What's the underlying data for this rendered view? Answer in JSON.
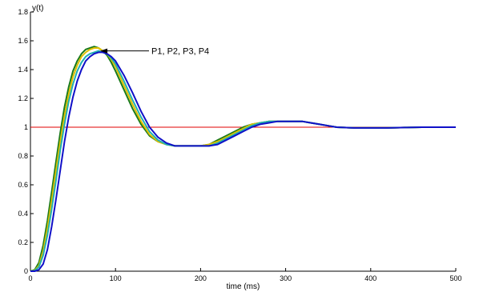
{
  "chart_data": {
    "type": "line",
    "xlabel": "time (ms)",
    "ylabel": "y(t)",
    "xlim": [
      0,
      500
    ],
    "ylim": [
      0,
      1.8
    ],
    "xticks": [
      "0",
      "100",
      "200",
      "300",
      "400",
      "500"
    ],
    "yticks": [
      "0",
      "0.2",
      "0.4",
      "0.6",
      "0.8",
      "1",
      "1.2",
      "1.4",
      "1.6",
      "1.8"
    ],
    "grid": false,
    "reference_line": {
      "y": 1,
      "color": "#e00000"
    },
    "annotation": {
      "text": "P1, P2, P3, P4",
      "x": 82,
      "y": 1.53
    },
    "series": [
      {
        "color": "#1a7a1a",
        "x": [
          0,
          5,
          10,
          15,
          20,
          25,
          30,
          35,
          40,
          45,
          50,
          55,
          60,
          65,
          70,
          75,
          80,
          85,
          90,
          95,
          100,
          110,
          120,
          130,
          140,
          150,
          160,
          170,
          180,
          190,
          200,
          210,
          220,
          230,
          240,
          250,
          260,
          270,
          280,
          290,
          300,
          310,
          320,
          330,
          340,
          350,
          360,
          380,
          400,
          420,
          440,
          460,
          480,
          500
        ],
        "values": [
          0,
          0.01,
          0.06,
          0.18,
          0.35,
          0.55,
          0.76,
          0.96,
          1.14,
          1.28,
          1.39,
          1.46,
          1.51,
          1.54,
          1.55,
          1.56,
          1.55,
          1.53,
          1.5,
          1.45,
          1.39,
          1.26,
          1.13,
          1.02,
          0.94,
          0.9,
          0.88,
          0.87,
          0.87,
          0.87,
          0.87,
          0.88,
          0.91,
          0.94,
          0.97,
          1.0,
          1.02,
          1.03,
          1.04,
          1.04,
          1.04,
          1.04,
          1.04,
          1.03,
          1.02,
          1.01,
          1.0,
          0.995,
          0.995,
          0.995,
          0.998,
          1.0,
          1.0,
          1.0
        ]
      },
      {
        "color": "#e0c000",
        "x": [
          0,
          5,
          10,
          15,
          20,
          25,
          30,
          35,
          40,
          45,
          50,
          55,
          60,
          65,
          70,
          75,
          80,
          85,
          90,
          95,
          100,
          110,
          120,
          130,
          140,
          150,
          160,
          170,
          180,
          190,
          200,
          210,
          220,
          230,
          240,
          250,
          260,
          270,
          280,
          290,
          300,
          310,
          320,
          330,
          340,
          350,
          360,
          380,
          400,
          420,
          440,
          460,
          480,
          500
        ],
        "values": [
          0,
          0.005,
          0.04,
          0.14,
          0.3,
          0.49,
          0.7,
          0.9,
          1.08,
          1.23,
          1.35,
          1.43,
          1.49,
          1.52,
          1.54,
          1.55,
          1.55,
          1.53,
          1.51,
          1.47,
          1.42,
          1.29,
          1.16,
          1.04,
          0.95,
          0.9,
          0.88,
          0.87,
          0.87,
          0.87,
          0.87,
          0.88,
          0.9,
          0.93,
          0.96,
          0.99,
          1.02,
          1.03,
          1.04,
          1.04,
          1.04,
          1.04,
          1.04,
          1.03,
          1.02,
          1.01,
          1.0,
          0.995,
          0.995,
          0.995,
          0.998,
          1.0,
          1.0,
          1.0
        ]
      },
      {
        "color": "#20b0b0",
        "x": [
          0,
          5,
          10,
          15,
          20,
          25,
          30,
          35,
          40,
          45,
          50,
          55,
          60,
          65,
          70,
          75,
          80,
          85,
          90,
          95,
          100,
          110,
          120,
          130,
          140,
          150,
          160,
          170,
          180,
          190,
          200,
          210,
          220,
          230,
          240,
          250,
          260,
          270,
          280,
          290,
          300,
          310,
          320,
          330,
          340,
          350,
          360,
          380,
          400,
          420,
          440,
          460,
          480,
          500
        ],
        "values": [
          0,
          0.003,
          0.03,
          0.11,
          0.25,
          0.43,
          0.63,
          0.84,
          1.02,
          1.18,
          1.3,
          1.39,
          1.45,
          1.49,
          1.51,
          1.52,
          1.53,
          1.52,
          1.51,
          1.48,
          1.44,
          1.32,
          1.19,
          1.07,
          0.97,
          0.91,
          0.88,
          0.87,
          0.87,
          0.87,
          0.87,
          0.87,
          0.89,
          0.92,
          0.95,
          0.98,
          1.01,
          1.03,
          1.04,
          1.04,
          1.04,
          1.04,
          1.04,
          1.03,
          1.02,
          1.01,
          1.0,
          0.995,
          0.995,
          0.995,
          0.998,
          1.0,
          1.0,
          1.0
        ]
      },
      {
        "color": "#1010c8",
        "x": [
          0,
          5,
          10,
          15,
          20,
          25,
          30,
          35,
          40,
          45,
          50,
          55,
          60,
          65,
          70,
          75,
          80,
          85,
          90,
          95,
          100,
          110,
          120,
          130,
          140,
          150,
          160,
          170,
          180,
          190,
          200,
          210,
          220,
          230,
          240,
          250,
          260,
          270,
          280,
          290,
          300,
          310,
          320,
          330,
          340,
          350,
          360,
          380,
          400,
          420,
          440,
          460,
          480,
          500
        ],
        "values": [
          0,
          0.0,
          0.01,
          0.05,
          0.15,
          0.31,
          0.5,
          0.7,
          0.9,
          1.07,
          1.21,
          1.32,
          1.4,
          1.46,
          1.49,
          1.51,
          1.52,
          1.52,
          1.51,
          1.49,
          1.46,
          1.36,
          1.24,
          1.11,
          1.0,
          0.93,
          0.89,
          0.87,
          0.87,
          0.87,
          0.87,
          0.87,
          0.88,
          0.91,
          0.94,
          0.97,
          1.0,
          1.02,
          1.03,
          1.04,
          1.04,
          1.04,
          1.04,
          1.03,
          1.02,
          1.01,
          1.0,
          0.995,
          0.995,
          0.995,
          0.998,
          1.0,
          1.0,
          1.0
        ]
      }
    ]
  }
}
